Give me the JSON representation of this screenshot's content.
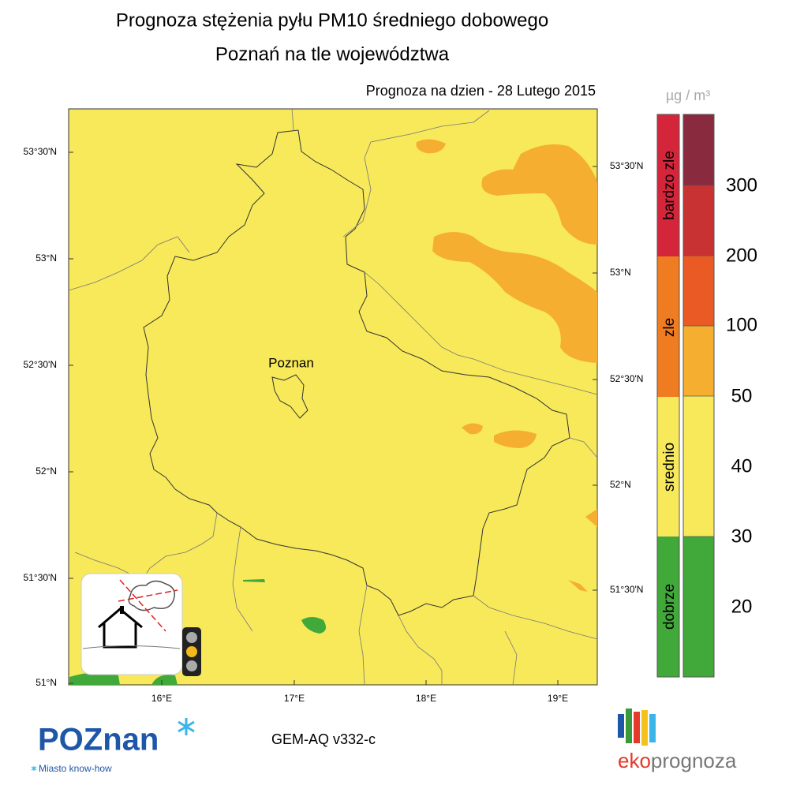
{
  "header": {
    "title": "Prognoza stężenia pyłu PM10 średniego dobowego",
    "subtitle": "Poznań na tle województwa",
    "date": "Prognoza na dzien -  28 Lutego 2015"
  },
  "map": {
    "city": "Poznan",
    "lat_left": [
      "53°30'N",
      "53°N",
      "52°30'N",
      "52°N",
      "51°30'N",
      "51°N"
    ],
    "lat_right": [
      "53°30'N",
      "53°N",
      "52°30'N",
      "52°N",
      "51°30'N"
    ],
    "lon": [
      "16°E",
      "17°E",
      "18°E",
      "19°E"
    ]
  },
  "legend": {
    "unit": "µg / m³",
    "categories": [
      "bardzo zle",
      "zle",
      "srednio",
      "dobrze"
    ],
    "scale": [
      "300",
      "200",
      "100",
      "50",
      "40",
      "30",
      "20"
    ]
  },
  "footer": {
    "model": "GEM-AQ v332-c",
    "logo_left": "POZnan",
    "tagline": "Miasto know-how",
    "logo_right": [
      "eko",
      "prognoza"
    ]
  }
}
